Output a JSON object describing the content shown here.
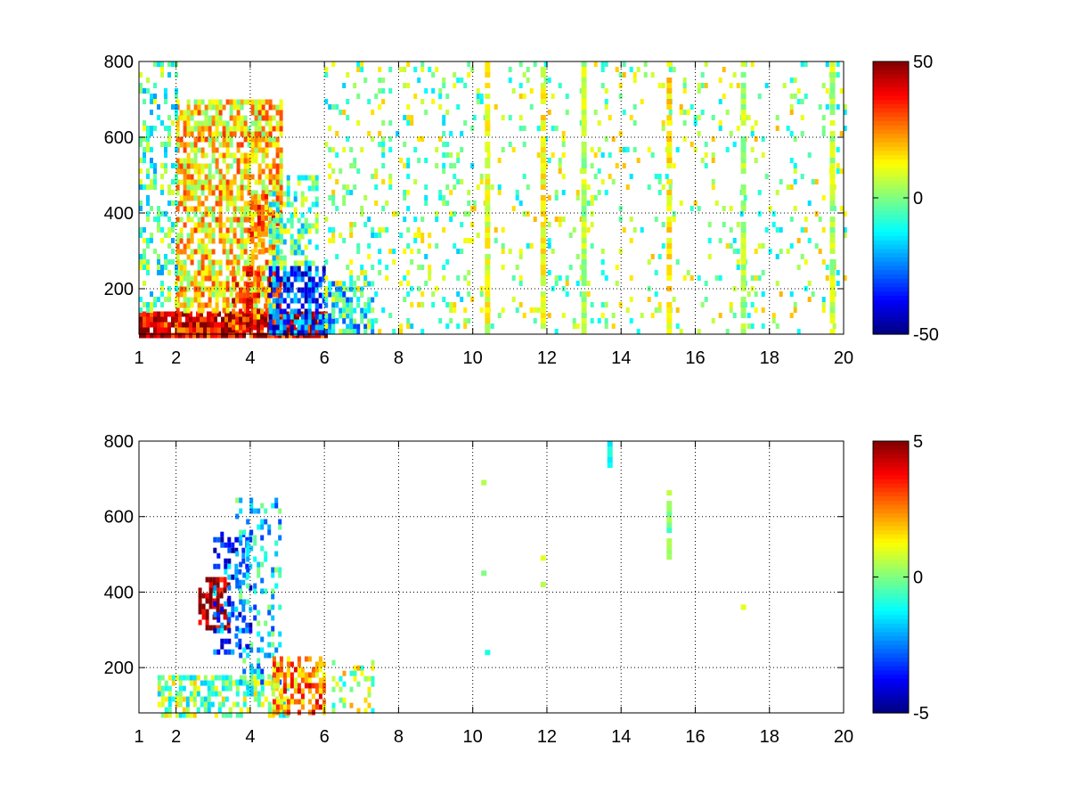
{
  "chart_data": [
    {
      "type": "heatmap",
      "title": "",
      "xlabel": "",
      "ylabel": "",
      "xlim": [
        1,
        20
      ],
      "ylim": [
        80,
        800
      ],
      "xticks": [
        1,
        2,
        4,
        6,
        8,
        10,
        12,
        14,
        16,
        18,
        20
      ],
      "yticks": [
        200,
        400,
        600,
        800
      ],
      "grid": true,
      "colormap": "jet",
      "colorbar": {
        "range": [
          -50,
          50
        ],
        "ticks": [
          50,
          0,
          -50
        ]
      },
      "regions": [
        {
          "x": [
            1.0,
            6.0
          ],
          "y": [
            80,
            140
          ],
          "value": 40,
          "density": 0.95
        },
        {
          "x": [
            2.0,
            4.8
          ],
          "y": [
            140,
            700
          ],
          "value": 15,
          "density": 0.7
        },
        {
          "x": [
            3.5,
            4.8
          ],
          "y": [
            100,
            260
          ],
          "value": 30,
          "density": 0.6
        },
        {
          "x": [
            4.0,
            4.8
          ],
          "y": [
            300,
            450
          ],
          "value": 25,
          "density": 0.5
        },
        {
          "x": [
            4.5,
            6.0
          ],
          "y": [
            80,
            260
          ],
          "value": -30,
          "density": 0.7
        },
        {
          "x": [
            4.5,
            5.8
          ],
          "y": [
            260,
            500
          ],
          "value": -5,
          "density": 0.5
        },
        {
          "x": [
            1.0,
            2.0
          ],
          "y": [
            140,
            800
          ],
          "value": -5,
          "density": 0.3
        },
        {
          "x": [
            6.0,
            7.3
          ],
          "y": [
            80,
            220
          ],
          "value": -15,
          "density": 0.6
        },
        {
          "x": [
            6.0,
            10.0
          ],
          "y": [
            80,
            800
          ],
          "value": 0,
          "density": 0.15
        },
        {
          "x": [
            10.0,
            20.0
          ],
          "y": [
            80,
            800
          ],
          "value": 2,
          "density": 0.1
        }
      ],
      "stripes": [
        {
          "x": 10.4,
          "value": 10
        },
        {
          "x": 11.9,
          "value": 12
        },
        {
          "x": 13.0,
          "value": 5
        },
        {
          "x": 15.3,
          "value": 15
        },
        {
          "x": 17.3,
          "value": 5
        },
        {
          "x": 19.7,
          "value": 5
        }
      ]
    },
    {
      "type": "heatmap",
      "title": "",
      "xlabel": "",
      "ylabel": "",
      "xlim": [
        1,
        20
      ],
      "ylim": [
        80,
        800
      ],
      "xticks": [
        1,
        2,
        4,
        6,
        8,
        10,
        12,
        14,
        16,
        18,
        20
      ],
      "yticks": [
        200,
        400,
        600,
        800
      ],
      "grid": true,
      "colormap": "jet",
      "colorbar": {
        "range": [
          -5,
          5
        ],
        "ticks": [
          5,
          0,
          -5
        ]
      },
      "regions": [
        {
          "x": [
            1.5,
            5.0
          ],
          "y": [
            80,
            180
          ],
          "value": 0,
          "density": 0.6
        },
        {
          "x": [
            2.6,
            3.4
          ],
          "y": [
            300,
            440
          ],
          "value": 5,
          "density": 0.55
        },
        {
          "x": [
            3.0,
            4.0
          ],
          "y": [
            240,
            560
          ],
          "value": -3,
          "density": 0.35
        },
        {
          "x": [
            3.6,
            4.8
          ],
          "y": [
            150,
            650
          ],
          "value": -1.5,
          "density": 0.3
        },
        {
          "x": [
            4.6,
            6.0
          ],
          "y": [
            80,
            230
          ],
          "value": 2.5,
          "density": 0.6
        },
        {
          "x": [
            6.2,
            7.3
          ],
          "y": [
            80,
            220
          ],
          "value": 0.5,
          "density": 0.35
        }
      ],
      "stripes": [
        {
          "x": 15.3,
          "y": [
            480,
            670
          ],
          "value": 0
        },
        {
          "x": 13.7,
          "y": [
            740,
            800
          ],
          "value": -1
        }
      ],
      "points": [
        {
          "x": 10.4,
          "y": 240,
          "value": -1
        },
        {
          "x": 11.9,
          "y": 490,
          "value": 1
        },
        {
          "x": 11.9,
          "y": 420,
          "value": 0.5
        },
        {
          "x": 10.3,
          "y": 690,
          "value": 0.5
        },
        {
          "x": 10.3,
          "y": 450,
          "value": 0
        },
        {
          "x": 17.3,
          "y": 360,
          "value": 1
        }
      ]
    }
  ]
}
